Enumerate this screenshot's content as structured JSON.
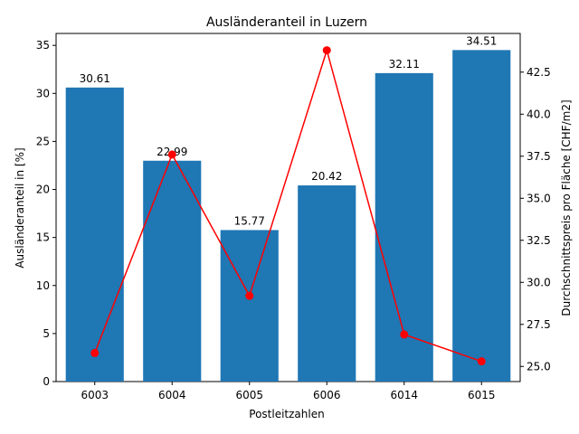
{
  "chart_data": {
    "type": "bar",
    "title": "Ausländeranteil in Luzern",
    "xlabel": "Postleitzahlen",
    "ylabel": "Ausländeranteil in [%]",
    "y2label": "Durchschnittspreis pro Fläche [CHF/m2]",
    "categories": [
      "6003",
      "6004",
      "6005",
      "6006",
      "6014",
      "6015"
    ],
    "bar_series": {
      "values": [
        30.61,
        22.99,
        15.77,
        20.42,
        32.11,
        34.51
      ],
      "color": "#1f77b4"
    },
    "line_series": {
      "values": [
        25.8,
        37.6,
        29.2,
        43.8,
        26.9,
        25.3
      ],
      "color": "#ff0000"
    },
    "ylim": [
      0,
      36.24
    ],
    "y2lim": [
      24.1,
      44.8
    ],
    "yticks": [
      0,
      5,
      10,
      15,
      20,
      25,
      30,
      35
    ],
    "y2ticks": [
      25.0,
      27.5,
      30.0,
      32.5,
      35.0,
      37.5,
      40.0,
      42.5
    ],
    "ytick_labels": [
      "0",
      "5",
      "10",
      "15",
      "20",
      "25",
      "30",
      "35"
    ],
    "y2tick_labels": [
      "25.0",
      "27.5",
      "30.0",
      "32.5",
      "35.0",
      "37.5",
      "40.0",
      "42.5"
    ],
    "data_labels": [
      "30.61",
      "22.99",
      "15.77",
      "20.42",
      "32.11",
      "34.51"
    ],
    "grid": false,
    "legend": "none"
  }
}
